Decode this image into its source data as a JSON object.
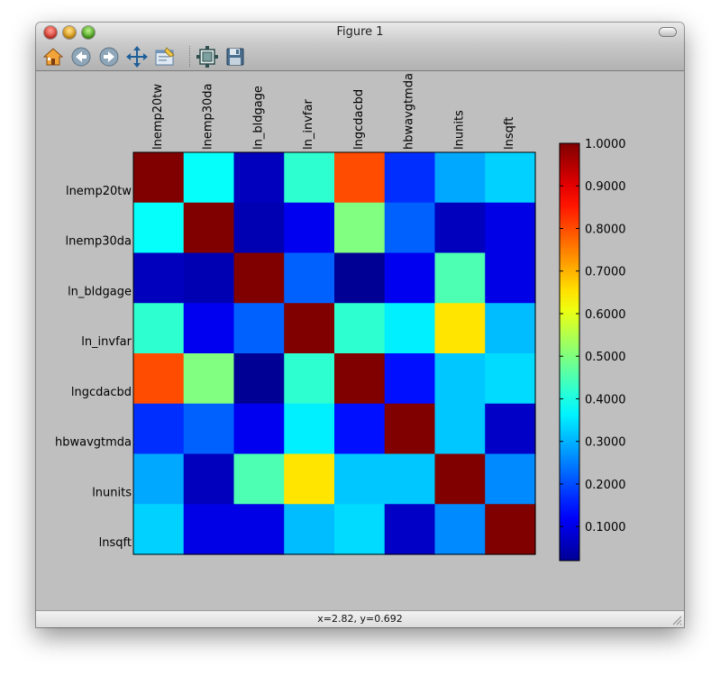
{
  "window": {
    "title": "Figure 1"
  },
  "toolbar": {
    "buttons": [
      {
        "name": "home-icon",
        "icon": "home"
      },
      {
        "name": "back-icon",
        "icon": "arrow-left"
      },
      {
        "name": "forward-icon",
        "icon": "arrow-right"
      },
      {
        "name": "pan-icon",
        "icon": "move-arrows"
      },
      {
        "name": "zoom-rect-icon",
        "icon": "zoom-rectangle"
      },
      {
        "name": "subplots-icon",
        "icon": "configure-subplots"
      },
      {
        "name": "save-icon",
        "icon": "floppy-disk"
      }
    ]
  },
  "status": {
    "coords": "x=2.82, y=0.692"
  },
  "chart_data": {
    "type": "heatmap",
    "colormap": "jet",
    "vmin": 0.0,
    "vmax": 1.0,
    "x_labels": [
      "lnemp20tw",
      "lnemp30da",
      "ln_bldgage",
      "ln_invfar",
      "lngcdacbd",
      "hbwavgtmda",
      "lnunits",
      "lnsqft"
    ],
    "y_labels": [
      "lnemp20tw",
      "lnemp30da",
      "ln_bldgage",
      "ln_invfar",
      "lngcdacbd",
      "hbwavgtmda",
      "lnunits",
      "lnsqft"
    ],
    "values": [
      [
        1.0,
        0.38,
        0.06,
        0.42,
        0.8,
        0.17,
        0.29,
        0.33
      ],
      [
        0.38,
        1.0,
        0.05,
        0.11,
        0.5,
        0.22,
        0.06,
        0.1
      ],
      [
        0.06,
        0.05,
        1.0,
        0.22,
        0.02,
        0.11,
        0.45,
        0.1
      ],
      [
        0.42,
        0.11,
        0.22,
        1.0,
        0.42,
        0.36,
        0.65,
        0.31
      ],
      [
        0.8,
        0.5,
        0.02,
        0.42,
        1.0,
        0.14,
        0.32,
        0.34
      ],
      [
        0.17,
        0.22,
        0.11,
        0.36,
        0.14,
        1.0,
        0.32,
        0.07
      ],
      [
        0.29,
        0.06,
        0.45,
        0.65,
        0.32,
        0.32,
        1.0,
        0.26
      ],
      [
        0.33,
        0.1,
        0.1,
        0.31,
        0.34,
        0.07,
        0.26,
        1.0
      ]
    ],
    "colorbar": {
      "ticks": [
        0.1,
        0.2,
        0.3,
        0.4,
        0.5,
        0.6,
        0.7,
        0.8,
        0.9,
        1.0
      ],
      "tick_labels": [
        "0.1000",
        "0.2000",
        "0.3000",
        "0.4000",
        "0.5000",
        "0.6000",
        "0.7000",
        "0.8000",
        "0.9000",
        "1.0000"
      ],
      "min": 0.02,
      "max": 1.0
    }
  }
}
